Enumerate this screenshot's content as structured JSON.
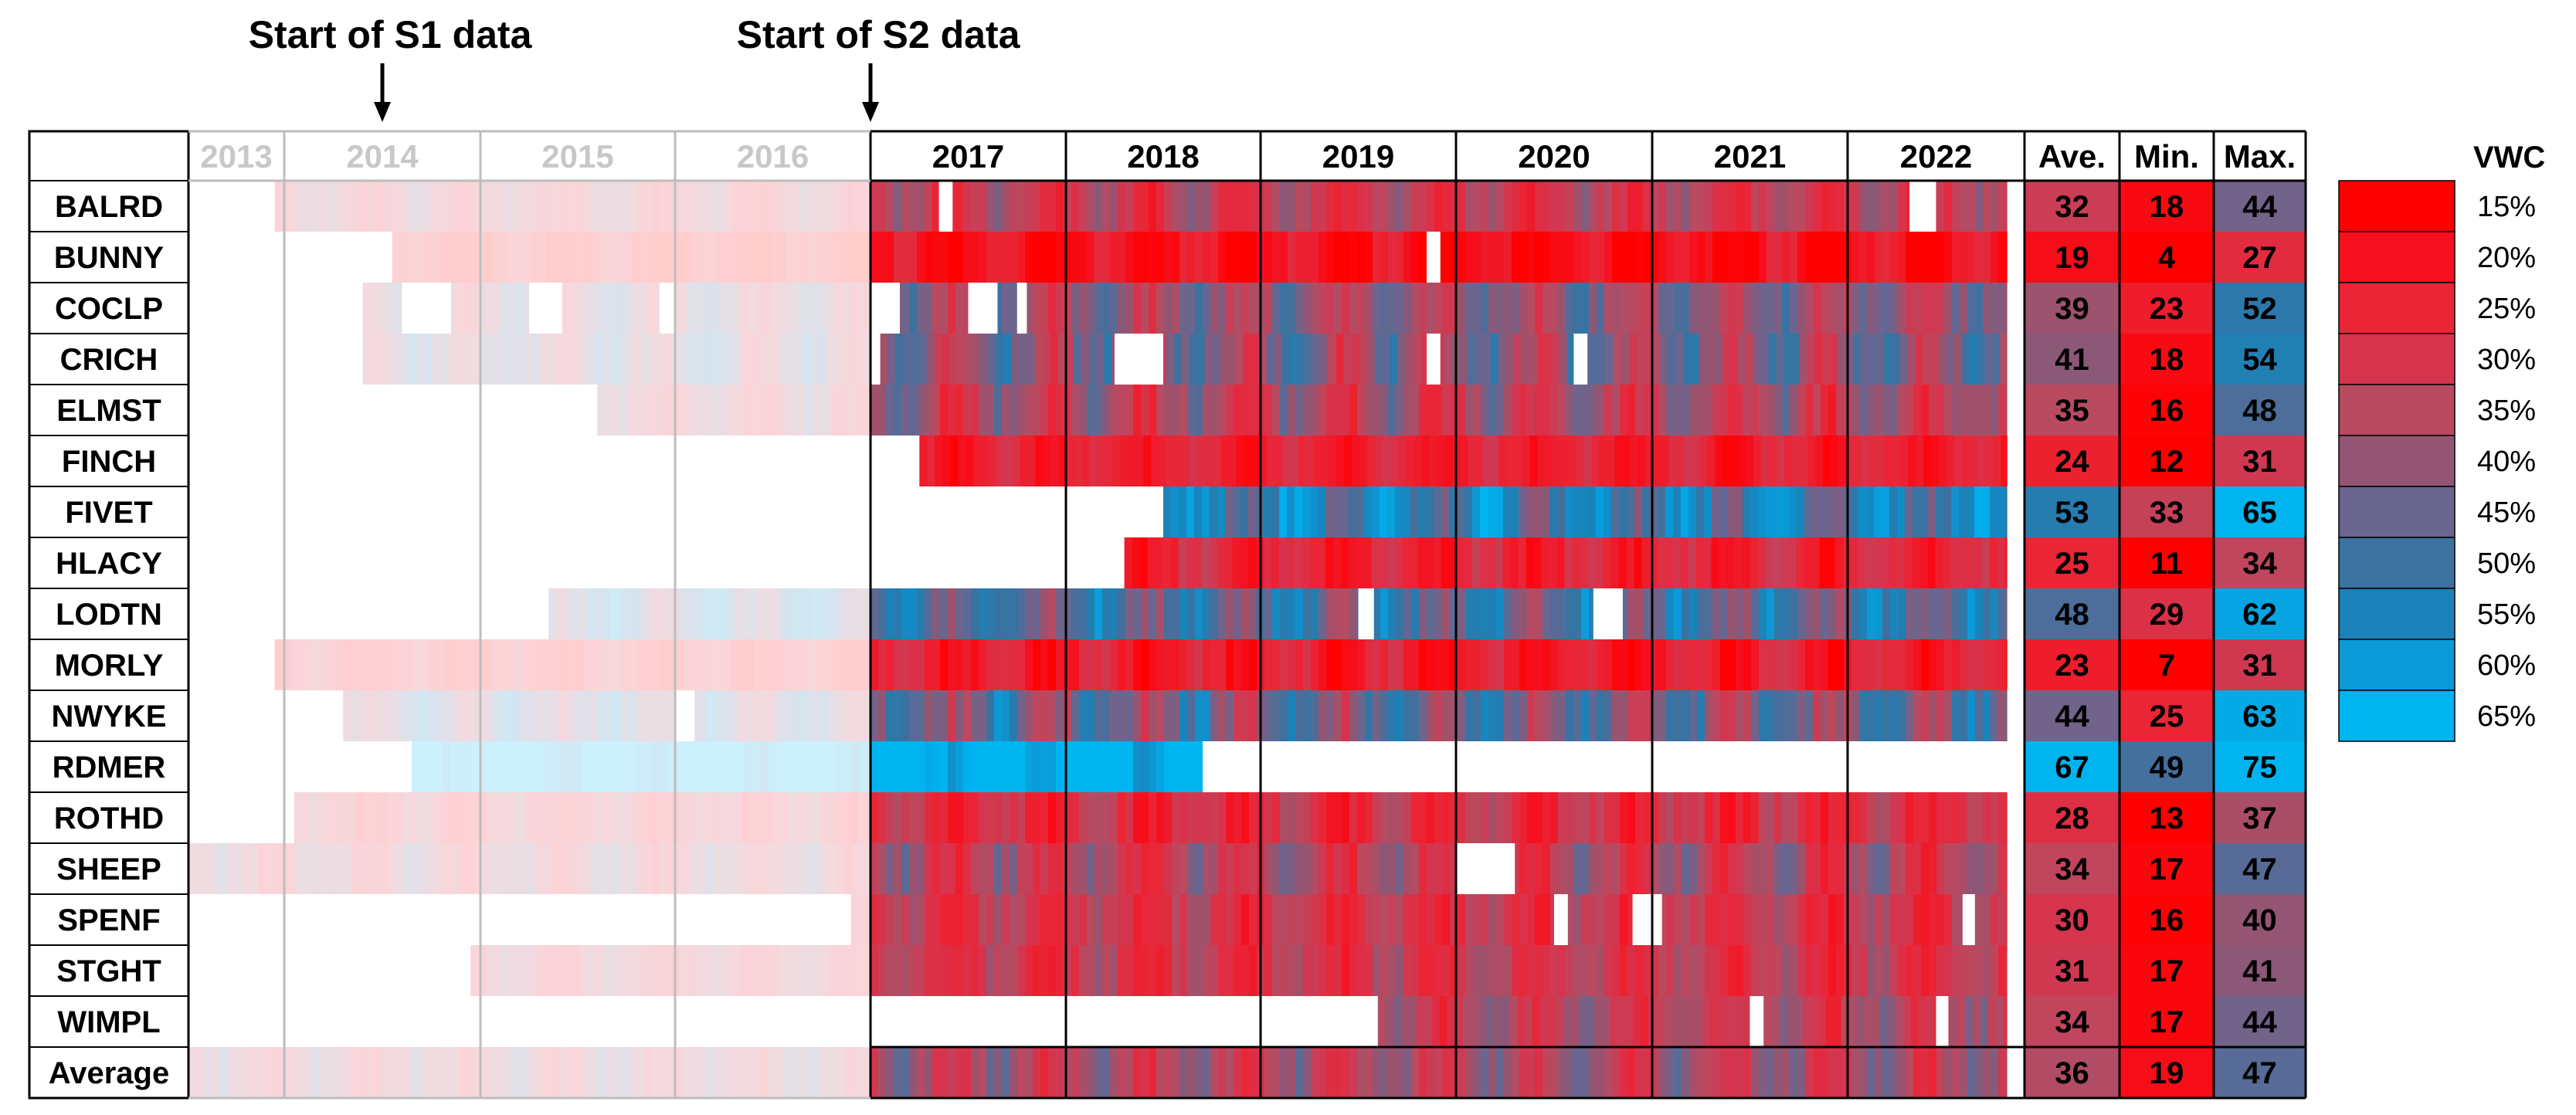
{
  "chart_data": {
    "type": "heatmap",
    "title": "",
    "annotations": [
      {
        "id": "s1",
        "label": "Start of S1 data",
        "year_position": 2014.5
      },
      {
        "id": "s2",
        "label": "Start of S2 data",
        "year_position": 2017.0
      }
    ],
    "years": [
      "2013",
      "2014",
      "2015",
      "2016",
      "2017",
      "2018",
      "2019",
      "2020",
      "2021",
      "2022"
    ],
    "faded_years": [
      "2013",
      "2014",
      "2015",
      "2016"
    ],
    "stats_headers": [
      "Ave.",
      "Min.",
      "Max."
    ],
    "legend": {
      "title": "VWC",
      "levels": [
        {
          "label": "15%",
          "value": 15,
          "color": "#ff0000"
        },
        {
          "label": "20%",
          "value": 20,
          "color": "#f5101e"
        },
        {
          "label": "25%",
          "value": 25,
          "color": "#ea2535"
        },
        {
          "label": "30%",
          "value": 30,
          "color": "#d6344d"
        },
        {
          "label": "35%",
          "value": 35,
          "color": "#b94a60"
        },
        {
          "label": "40%",
          "value": 40,
          "color": "#945572"
        },
        {
          "label": "45%",
          "value": 45,
          "color": "#6a6690"
        },
        {
          "label": "50%",
          "value": 50,
          "color": "#3a72a0"
        },
        {
          "label": "55%",
          "value": 55,
          "color": "#1a82b8"
        },
        {
          "label": "60%",
          "value": 60,
          "color": "#0a9ad8"
        },
        {
          "label": "65%",
          "value": 65,
          "color": "#00b4f0"
        }
      ]
    },
    "rows": [
      {
        "site": "BALRD",
        "s1_start": 2013.9,
        "s2_start": 2017.0,
        "s2_end": 2022.9,
        "ave": 32,
        "min": 18,
        "max": 44,
        "gaps": [
          [
            2017.35,
            2017.42
          ],
          [
            2022.35,
            2022.5
          ]
        ]
      },
      {
        "site": "BUNNY",
        "s1_start": 2014.55,
        "s2_start": 2017.0,
        "s2_end": 2022.9,
        "ave": 19,
        "min": 4,
        "max": 27,
        "gaps": [
          [
            2019.85,
            2019.92
          ]
        ]
      },
      {
        "site": "COCLP",
        "s1_start": 2014.4,
        "s2_start": 2017.0,
        "s2_end": 2022.9,
        "ave": 39,
        "min": 23,
        "max": 52,
        "gaps": [
          [
            2014.6,
            2014.85
          ],
          [
            2015.25,
            2015.42
          ],
          [
            2015.92,
            2016.0
          ],
          [
            2017.0,
            2017.15
          ],
          [
            2017.5,
            2017.65
          ],
          [
            2017.75,
            2017.8
          ]
        ]
      },
      {
        "site": "CRICH",
        "s1_start": 2014.4,
        "s2_start": 2017.05,
        "s2_end": 2022.9,
        "ave": 41,
        "min": 18,
        "max": 54,
        "gaps": [
          [
            2018.25,
            2018.5
          ],
          [
            2019.85,
            2019.92
          ],
          [
            2020.6,
            2020.67
          ]
        ]
      },
      {
        "site": "ELMST",
        "s1_start": 2015.6,
        "s2_start": 2017.0,
        "s2_end": 2022.9,
        "ave": 35,
        "min": 16,
        "max": 48,
        "gaps": []
      },
      {
        "site": "FINCH",
        "s1_start": null,
        "s2_start": 2017.25,
        "s2_end": 2022.9,
        "ave": 24,
        "min": 12,
        "max": 31,
        "gaps": []
      },
      {
        "site": "FIVET",
        "s1_start": null,
        "s2_start": 2018.5,
        "s2_end": 2022.9,
        "ave": 53,
        "min": 33,
        "max": 65,
        "gaps": []
      },
      {
        "site": "HLACY",
        "s1_start": null,
        "s2_start": 2018.3,
        "s2_end": 2022.9,
        "ave": 25,
        "min": 11,
        "max": 34,
        "gaps": []
      },
      {
        "site": "LODTN",
        "s1_start": 2015.35,
        "s2_start": 2017.0,
        "s2_end": 2022.9,
        "ave": 48,
        "min": 29,
        "max": 62,
        "gaps": [
          [
            2019.5,
            2019.58
          ],
          [
            2020.7,
            2020.85
          ]
        ]
      },
      {
        "site": "MORLY",
        "s1_start": 2013.9,
        "s2_start": 2017.0,
        "s2_end": 2022.9,
        "ave": 23,
        "min": 7,
        "max": 31,
        "gaps": []
      },
      {
        "site": "NWYKE",
        "s1_start": 2014.3,
        "s2_start": 2017.0,
        "s2_end": 2022.9,
        "ave": 44,
        "min": 25,
        "max": 63,
        "gaps": [
          [
            2016.0,
            2016.1
          ]
        ]
      },
      {
        "site": "RDMER",
        "s1_start": 2014.65,
        "s2_start": 2017.0,
        "s2_end": 2018.7,
        "ave": 67,
        "min": 49,
        "max": 75,
        "gaps": []
      },
      {
        "site": "ROTHD",
        "s1_start": 2014.05,
        "s2_start": 2017.0,
        "s2_end": 2022.9,
        "ave": 28,
        "min": 13,
        "max": 37,
        "gaps": []
      },
      {
        "site": "SHEEP",
        "s1_start": 2013.0,
        "s2_start": 2017.0,
        "s2_end": 2022.9,
        "ave": 34,
        "min": 17,
        "max": 47,
        "gaps": [
          [
            2020.0,
            2020.3
          ],
          [
            2020.0,
            2020.05
          ]
        ]
      },
      {
        "site": "SPENF",
        "s1_start": 2016.9,
        "s2_start": 2017.0,
        "s2_end": 2022.9,
        "ave": 30,
        "min": 16,
        "max": 40,
        "gaps": [
          [
            2020.5,
            2020.57
          ],
          [
            2020.9,
            2021.05
          ],
          [
            2022.65,
            2022.72
          ]
        ]
      },
      {
        "site": "STGHT",
        "s1_start": 2014.95,
        "s2_start": 2017.0,
        "s2_end": 2022.9,
        "ave": 31,
        "min": 17,
        "max": 41,
        "gaps": []
      },
      {
        "site": "WIMPL",
        "s1_start": null,
        "s2_start": 2019.6,
        "s2_end": 2022.9,
        "ave": 34,
        "min": 17,
        "max": 44,
        "gaps": [
          [
            2021.5,
            2021.57
          ],
          [
            2022.5,
            2022.57
          ]
        ]
      },
      {
        "site": "Average",
        "s1_start": 2013.0,
        "s2_start": 2017.0,
        "s2_end": 2022.9,
        "ave": 36,
        "min": 19,
        "max": 47,
        "gaps": []
      }
    ]
  }
}
